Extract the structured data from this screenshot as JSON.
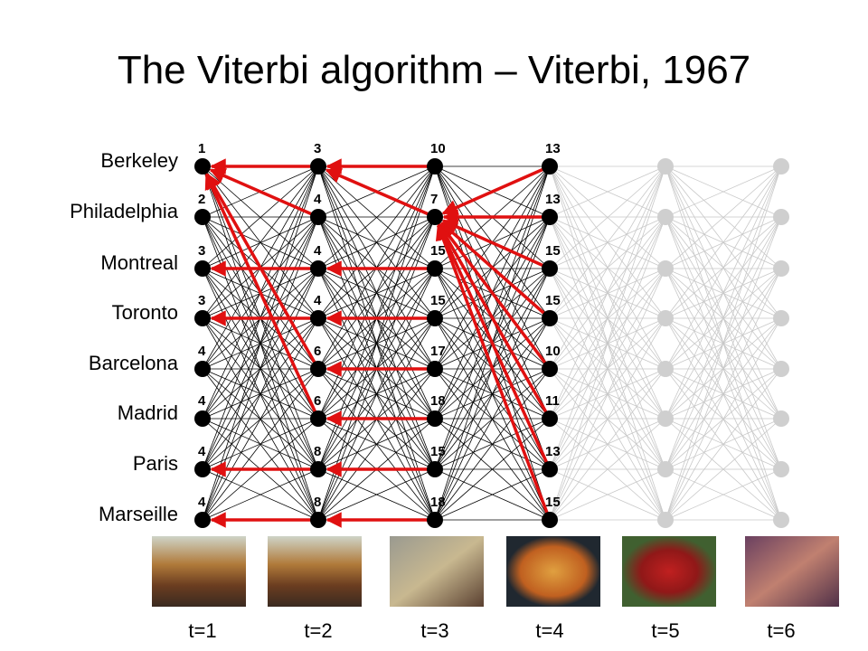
{
  "title": "The Viterbi algorithm – Viterbi, 1967",
  "states": [
    "Berkeley",
    "Philadelphia",
    "Montreal",
    "Toronto",
    "Barcelona",
    "Madrid",
    "Paris",
    "Marseille"
  ],
  "scores": [
    [
      1,
      2,
      3,
      3,
      4,
      4,
      4,
      4
    ],
    [
      3,
      4,
      4,
      4,
      6,
      6,
      8,
      8
    ],
    [
      10,
      7,
      15,
      15,
      17,
      18,
      15,
      18
    ],
    [
      13,
      13,
      15,
      15,
      10,
      11,
      13,
      15
    ]
  ],
  "times": [
    "t=1",
    "t=2",
    "t=3",
    "t=4",
    "t=5",
    "t=6"
  ]
}
